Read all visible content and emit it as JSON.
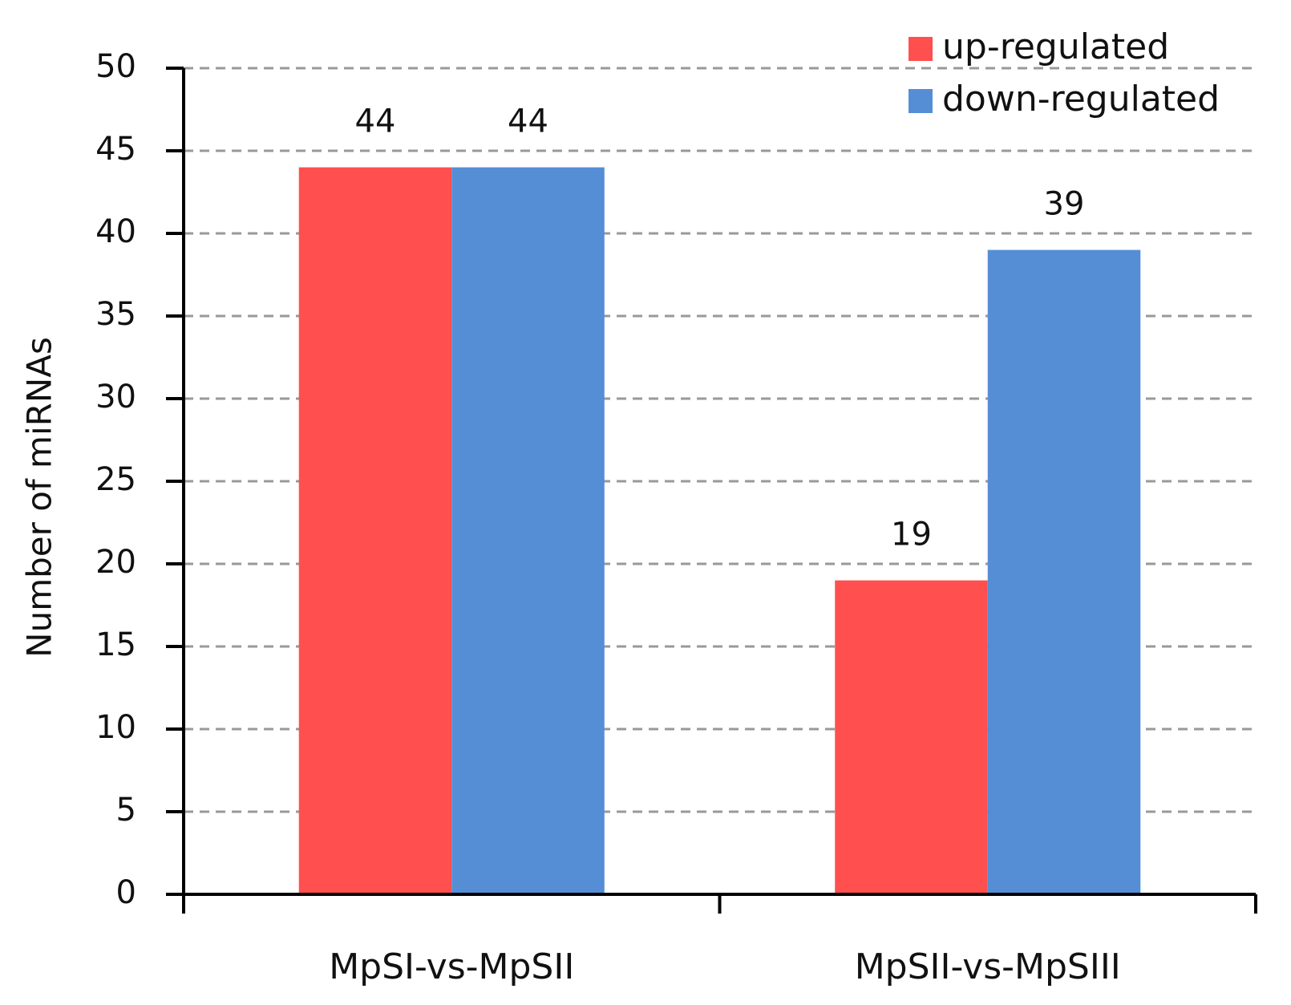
{
  "chart_data": {
    "type": "bar",
    "y_label": "Number of miRNAs",
    "categories": [
      "MpSI-vs-MpSII",
      "MpSII-vs-MpSIII"
    ],
    "series": [
      {
        "name": "up-regulated",
        "color": "#ff4f4f",
        "values": [
          44,
          19
        ]
      },
      {
        "name": "down-regulated",
        "color": "#558ed5",
        "values": [
          44,
          39
        ]
      }
    ],
    "ylim": [
      0,
      50
    ],
    "yticks": [
      0,
      5,
      10,
      15,
      20,
      25,
      30,
      35,
      40,
      45,
      50
    ],
    "grid": true,
    "legend": "top-right"
  }
}
